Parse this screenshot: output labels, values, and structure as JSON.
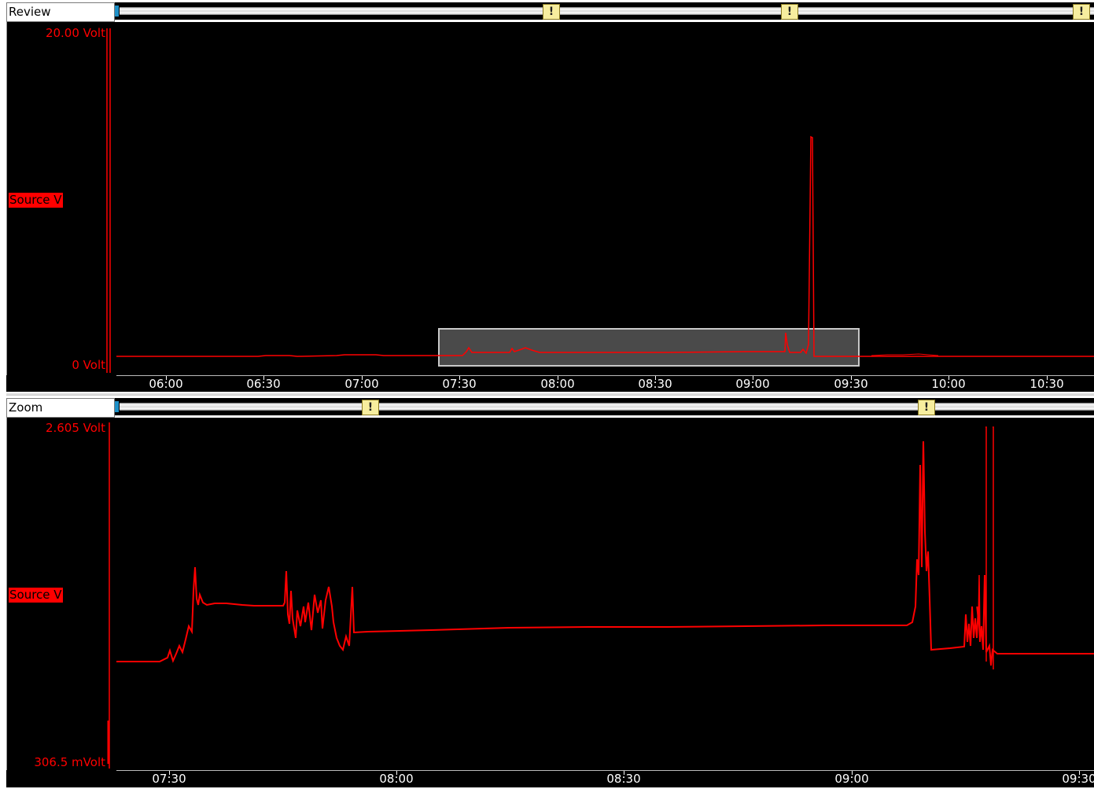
{
  "review": {
    "title": "Review",
    "y_max_label": "20.00  Volt",
    "y_min_label": "0  Volt",
    "channel_label": "Source V",
    "time_labels": [
      "06:00",
      "06:30",
      "07:00",
      "07:30",
      "08:00",
      "08:30",
      "09:00",
      "09:30",
      "10:00",
      "10:30"
    ],
    "marker_glyph": "!",
    "marker_count": 3
  },
  "zoom": {
    "title": "Zoom",
    "y_max_label": "2.605  Volt",
    "y_min_label": "306.5 mVolt",
    "channel_label": "Source V",
    "time_labels": [
      "07:30",
      "08:00",
      "08:30",
      "09:00",
      "09:30"
    ],
    "marker_glyph": "!",
    "marker_count": 2
  },
  "colors": {
    "trace": "#ff0000",
    "background": "#000000",
    "selection": "#4a4a4a",
    "marker": "#f7ee9e",
    "scroll_cap": "#1e90c8"
  },
  "icons": [
    "event-marker-icon",
    "scroll-bar",
    "selection-window"
  ]
}
